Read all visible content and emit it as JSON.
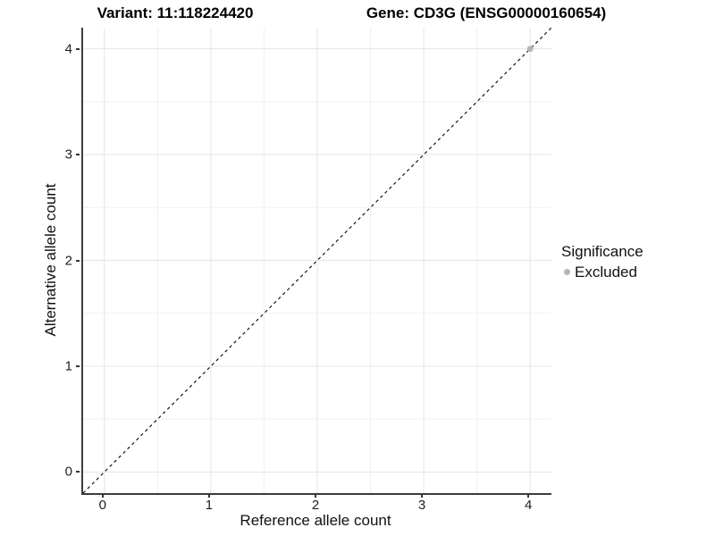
{
  "chart_data": {
    "type": "scatter",
    "title_left": "Variant: 11:118224420",
    "title_right": "Gene: CD3G (ENSG00000160654)",
    "xlabel": "Reference allele count",
    "ylabel": "Alternative allele count",
    "xlim": [
      -0.2,
      4.2
    ],
    "ylim": [
      -0.2,
      4.2
    ],
    "xticks": [
      0,
      1,
      2,
      3,
      4
    ],
    "yticks": [
      0,
      1,
      2,
      3,
      4
    ],
    "xticks_minor": [
      0.5,
      1.5,
      2.5,
      3.5
    ],
    "yticks_minor": [
      0.5,
      1.5,
      2.5,
      3.5
    ],
    "grid": "major+minor",
    "legend": {
      "title": "Significance",
      "position": "right",
      "entries": [
        {
          "label": "Excluded",
          "color": "#b5b5b5"
        }
      ]
    },
    "series": [
      {
        "name": "Excluded",
        "color": "#b5b5b5",
        "marker_radius": 3.4,
        "points": [
          [
            4,
            4
          ]
        ]
      }
    ],
    "reference_line": {
      "kind": "identity y=x",
      "style": "dashed",
      "color": "#000000",
      "x": [
        -0.2,
        4.2
      ],
      "y": [
        -0.2,
        4.2
      ]
    }
  },
  "colors": {
    "background": "#ffffff",
    "grid_major": "#e4e4e4",
    "grid_minor": "#f0f0f0",
    "axis_line": "#3c3c3c",
    "tick_mark": "#333333"
  }
}
